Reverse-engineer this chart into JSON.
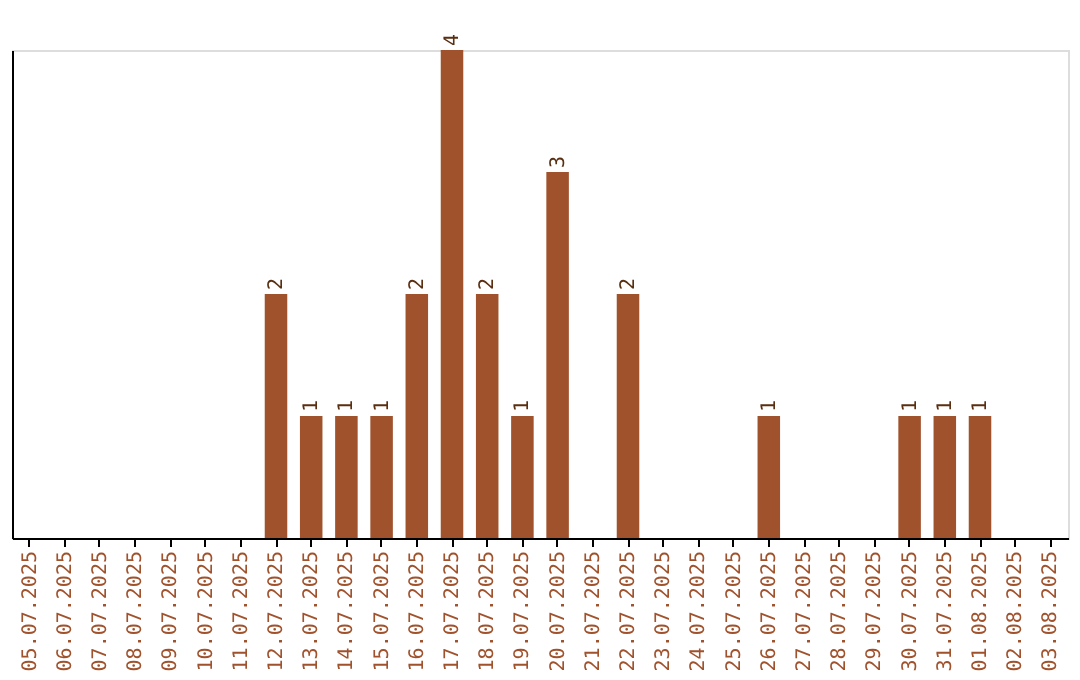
{
  "chart_data": {
    "type": "bar",
    "categories": [
      "05.07.2025",
      "06.07.2025",
      "07.07.2025",
      "08.07.2025",
      "09.07.2025",
      "10.07.2025",
      "11.07.2025",
      "12.07.2025",
      "13.07.2025",
      "14.07.2025",
      "15.07.2025",
      "16.07.2025",
      "17.07.2025",
      "18.07.2025",
      "19.07.2025",
      "20.07.2025",
      "21.07.2025",
      "22.07.2025",
      "23.07.2025",
      "24.07.2025",
      "25.07.2025",
      "26.07.2025",
      "27.07.2025",
      "28.07.2025",
      "29.07.2025",
      "30.07.2025",
      "31.07.2025",
      "01.08.2025",
      "02.08.2025",
      "03.08.2025"
    ],
    "values": [
      0,
      0,
      0,
      0,
      0,
      0,
      0,
      2,
      1,
      1,
      1,
      2,
      4,
      2,
      1,
      3,
      0,
      2,
      0,
      0,
      0,
      1,
      0,
      0,
      0,
      1,
      1,
      1,
      0,
      0
    ],
    "value_labels": [
      null,
      null,
      null,
      null,
      null,
      null,
      null,
      "2",
      "1",
      "1",
      "1",
      "2",
      "4",
      "2",
      "1",
      "3",
      null,
      "2",
      null,
      null,
      null,
      "1",
      null,
      null,
      null,
      "1",
      "1",
      "1",
      null,
      null
    ],
    "color": "#a0522d",
    "tick_labels": "x",
    "grid": false
  }
}
